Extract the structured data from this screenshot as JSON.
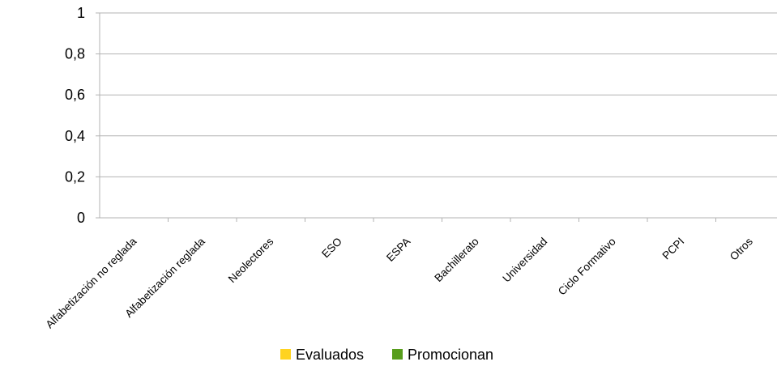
{
  "chart_data": {
    "type": "bar",
    "categories": [
      "Alfabetización no reglada",
      "Alfabetización reglada",
      "Neolectores",
      "ESO",
      "ESPA",
      "Bachillerato",
      "Universidad",
      "Ciclo Formativo",
      "PCPI",
      "Otros"
    ],
    "series": [
      {
        "name": "Evaluados",
        "color": "#ffd320",
        "values": [
          0,
          0,
          0,
          0,
          0,
          0,
          0,
          0,
          0,
          0
        ]
      },
      {
        "name": "Promocionan",
        "color": "#579d1c",
        "values": [
          0,
          0,
          0,
          0,
          0,
          0,
          0,
          0,
          0,
          0
        ]
      }
    ],
    "yticks": [
      "0",
      "0,2",
      "0,4",
      "0,6",
      "0,8",
      "1"
    ],
    "ylim": [
      0,
      1
    ],
    "grid": true,
    "legend_position": "bottom-center"
  }
}
